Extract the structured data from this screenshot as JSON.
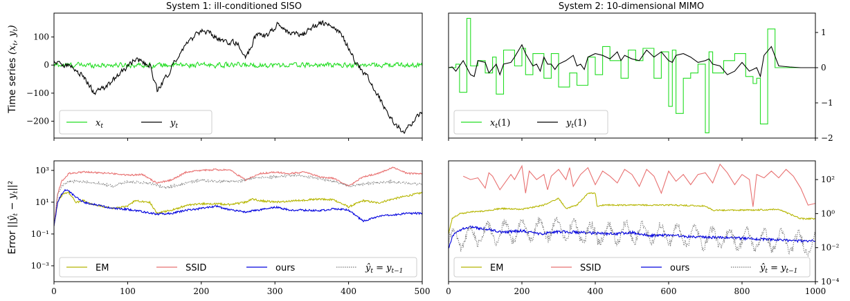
{
  "chart_data": [
    {
      "id": "p1",
      "type": "line",
      "title": "System 1: ill-conditioned SISO",
      "ylabel": "Time series (x_t, y_t)",
      "xlim": [
        0,
        500
      ],
      "ylim": [
        -260,
        185
      ],
      "xticks": [],
      "yticks": [
        {
          "v": 100,
          "label": "100"
        },
        {
          "v": 0,
          "label": "0"
        },
        {
          "v": -100,
          "label": "−100"
        },
        {
          "v": -200,
          "label": "−200"
        }
      ],
      "ytick_side": "left",
      "legend": "lower-left",
      "series": [
        {
          "name": "x_t",
          "color": "#22dd22",
          "style": "noise",
          "noise_amp": 8,
          "x": [
            0,
            500
          ],
          "y": [
            0,
            0
          ]
        },
        {
          "name": "y_t",
          "color": "#000000",
          "style": "noise",
          "noise_amp": 9,
          "x": [
            0,
            20,
            40,
            55,
            70,
            90,
            110,
            130,
            140,
            155,
            170,
            185,
            200,
            215,
            230,
            250,
            260,
            275,
            290,
            305,
            320,
            340,
            360,
            375,
            390,
            410,
            425,
            440,
            460,
            475,
            485,
            500
          ],
          "y": [
            10,
            0,
            -40,
            -100,
            -80,
            -30,
            20,
            0,
            -90,
            -30,
            40,
            90,
            120,
            110,
            80,
            80,
            20,
            110,
            105,
            150,
            110,
            110,
            150,
            140,
            110,
            10,
            -40,
            -110,
            -200,
            -240,
            -210,
            -160
          ]
        }
      ]
    },
    {
      "id": "p2",
      "type": "line",
      "title": "System 2: 10-dimensional MIMO",
      "ylabel": "",
      "xlim": [
        0,
        1000
      ],
      "ylim": [
        -2,
        1.55
      ],
      "xticks": [],
      "yticks": [
        {
          "v": 1,
          "label": "1"
        },
        {
          "v": 0,
          "label": "0"
        },
        {
          "v": -1,
          "label": "−1"
        },
        {
          "v": -2,
          "label": "−2"
        }
      ],
      "ytick_side": "right",
      "legend": "lower-left",
      "series": [
        {
          "name": "x_t(1)",
          "color": "#22dd22",
          "style": "step",
          "x": [
            0,
            20,
            30,
            50,
            60,
            80,
            100,
            120,
            130,
            150,
            180,
            200,
            210,
            230,
            260,
            280,
            300,
            330,
            350,
            380,
            400,
            420,
            440,
            470,
            490,
            510,
            530,
            560,
            580,
            600,
            610,
            620,
            640,
            660,
            680,
            700,
            710,
            720,
            750,
            780,
            810,
            830,
            840,
            850,
            870,
            890,
            1000
          ],
          "y": [
            0,
            0.1,
            -0.7,
            1.4,
            0.05,
            0.2,
            -0.15,
            0.3,
            -0.75,
            0.5,
            0.05,
            0.55,
            -0.2,
            0.4,
            -0.3,
            0.4,
            -0.55,
            -0.15,
            -0.5,
            0.3,
            -0.2,
            0.6,
            0.2,
            -0.3,
            0.5,
            0.2,
            0.55,
            -0.3,
            0.45,
            -1.1,
            0.5,
            -1.3,
            -0.3,
            -0.15,
            0.1,
            -1.85,
            0.45,
            -0.15,
            0.2,
            0.4,
            -0.25,
            -0.45,
            -0.3,
            -1.6,
            1.1,
            0,
            0
          ]
        },
        {
          "name": "y_t(1)",
          "color": "#000000",
          "style": "line",
          "x": [
            0,
            10,
            20,
            40,
            60,
            70,
            80,
            100,
            110,
            130,
            140,
            150,
            170,
            180,
            200,
            210,
            230,
            240,
            250,
            260,
            270,
            280,
            290,
            300,
            320,
            340,
            350,
            360,
            370,
            380,
            400,
            420,
            440,
            460,
            470,
            480,
            500,
            520,
            540,
            560,
            580,
            600,
            610,
            620,
            640,
            660,
            680,
            700,
            710,
            720,
            740,
            760,
            780,
            800,
            820,
            840,
            850,
            860,
            880,
            900,
            930,
            960,
            1000
          ],
          "y": [
            0,
            0.02,
            -0.1,
            0.2,
            -0.2,
            -0.25,
            0.2,
            0.15,
            -0.15,
            0.1,
            -0.2,
            0.1,
            0.15,
            0.3,
            0.65,
            0.4,
            0.05,
            0.1,
            -0.1,
            0.3,
            0.1,
            0.1,
            -0.05,
            0.1,
            0.2,
            0.35,
            0.05,
            0.1,
            -0.05,
            0.3,
            0.4,
            0.35,
            0.25,
            0.45,
            0.2,
            0.35,
            0.25,
            0.2,
            0.5,
            0.3,
            0.45,
            0.2,
            0.15,
            0.35,
            0.4,
            0.3,
            0.15,
            0.2,
            0.25,
            0.1,
            0.05,
            -0.2,
            -0.1,
            0.15,
            -0.1,
            0.0,
            -0.25,
            0.35,
            0.6,
            0.05,
            0.02,
            0.0,
            0.0
          ]
        }
      ]
    },
    {
      "id": "p3",
      "type": "line",
      "title": "",
      "ylabel": "Error ||ŷ_t − y_t||²",
      "log": true,
      "xlim": [
        0,
        500
      ],
      "ylim": [
        -4,
        3.6
      ],
      "xticks": [
        {
          "v": 0,
          "label": "0"
        },
        {
          "v": 100,
          "label": "100"
        },
        {
          "v": 200,
          "label": "200"
        },
        {
          "v": 300,
          "label": "300"
        },
        {
          "v": 400,
          "label": "400"
        },
        {
          "v": 500,
          "label": "500"
        }
      ],
      "yticks": [
        {
          "v": 3,
          "label": "10³"
        },
        {
          "v": 1,
          "label": "10¹"
        },
        {
          "v": -1,
          "label": "10⁻¹"
        },
        {
          "v": -3,
          "label": "10⁻³"
        }
      ],
      "ytick_side": "left",
      "legend": "bottom",
      "series": [
        {
          "name": "EM",
          "color": "#b5b500",
          "style": "line",
          "noise_amp": 0.06,
          "x": [
            0,
            5,
            10,
            15,
            20,
            30,
            40,
            50,
            80,
            100,
            110,
            130,
            140,
            150,
            160,
            180,
            200,
            220,
            240,
            260,
            270,
            280,
            300,
            330,
            360,
            380,
            400,
            420,
            440,
            460,
            480,
            500
          ],
          "y": [
            -0.5,
            1.0,
            1.4,
            1.6,
            1.6,
            1.0,
            1.1,
            0.9,
            0.6,
            0.75,
            1.1,
            1.0,
            0.3,
            0.4,
            0.5,
            0.8,
            0.9,
            0.9,
            0.85,
            1.0,
            1.2,
            1.1,
            1.0,
            1.1,
            1.2,
            1.15,
            0.7,
            1.1,
            0.95,
            1.2,
            1.4,
            1.6
          ]
        },
        {
          "name": "SSID",
          "color": "#e87070",
          "style": "line",
          "noise_amp": 0.05,
          "x": [
            0,
            5,
            10,
            20,
            40,
            60,
            80,
            100,
            120,
            140,
            160,
            180,
            200,
            220,
            240,
            260,
            280,
            300,
            320,
            340,
            360,
            380,
            400,
            420,
            440,
            460,
            470,
            480,
            500
          ],
          "y": [
            -0.5,
            1.5,
            2.3,
            2.8,
            2.9,
            2.85,
            2.8,
            2.7,
            2.75,
            2.2,
            2.4,
            2.9,
            3.0,
            3.05,
            3.0,
            2.4,
            2.8,
            2.9,
            2.8,
            2.9,
            2.6,
            2.5,
            2.0,
            2.6,
            2.8,
            3.2,
            3.0,
            2.8,
            2.8
          ]
        },
        {
          "name": "ours",
          "color": "#0000dd",
          "style": "line",
          "noise_amp": 0.06,
          "x": [
            0,
            5,
            10,
            15,
            20,
            30,
            40,
            60,
            80,
            100,
            120,
            140,
            160,
            180,
            200,
            220,
            240,
            260,
            280,
            300,
            320,
            340,
            360,
            380,
            400,
            420,
            440,
            460,
            480,
            500
          ],
          "y": [
            -0.5,
            1.0,
            1.5,
            1.75,
            1.7,
            1.3,
            1.0,
            0.8,
            0.6,
            0.55,
            0.4,
            0.25,
            0.3,
            0.5,
            0.6,
            0.75,
            0.5,
            0.4,
            0.5,
            0.7,
            0.5,
            0.5,
            0.45,
            0.6,
            0.5,
            -0.2,
            0.1,
            0.2,
            0.3,
            0.3
          ]
        },
        {
          "name": "ŷ_t = y_{t−1}",
          "color": "#777777",
          "style": "dotted",
          "noise_amp": 0.08,
          "x": [
            0,
            5,
            10,
            20,
            40,
            60,
            80,
            100,
            130,
            150,
            180,
            200,
            220,
            250,
            270,
            300,
            330,
            360,
            380,
            400,
            430,
            460,
            480,
            500
          ],
          "y": [
            -0.5,
            1.5,
            2.0,
            2.3,
            2.3,
            2.2,
            2.0,
            2.3,
            2.2,
            1.9,
            2.2,
            2.4,
            2.3,
            2.3,
            2.5,
            2.6,
            2.7,
            2.5,
            2.3,
            2.0,
            2.2,
            2.3,
            2.2,
            2.1
          ]
        }
      ]
    },
    {
      "id": "p4",
      "type": "line",
      "title": "",
      "ylabel": "",
      "log": true,
      "xlim": [
        0,
        1000
      ],
      "ylim": [
        -4,
        3.1
      ],
      "xticks": [
        {
          "v": 0,
          "label": "0"
        },
        {
          "v": 200,
          "label": "200"
        },
        {
          "v": 400,
          "label": "400"
        },
        {
          "v": 600,
          "label": "600"
        },
        {
          "v": 800,
          "label": "800"
        },
        {
          "v": 1000,
          "label": "1000"
        }
      ],
      "yticks": [
        {
          "v": 2,
          "label": "10²"
        },
        {
          "v": 0,
          "label": "10⁰"
        },
        {
          "v": -2,
          "label": "10⁻²"
        },
        {
          "v": -4,
          "label": "10⁻⁴"
        }
      ],
      "ytick_side": "right",
      "legend": "bottom",
      "series": [
        {
          "name": "EM",
          "color": "#b5b500",
          "style": "line",
          "noise_amp": 0.04,
          "x": [
            0,
            10,
            30,
            60,
            100,
            140,
            200,
            260,
            300,
            320,
            350,
            380,
            400,
            405,
            420,
            500,
            600,
            700,
            720,
            800,
            900,
            960,
            1000
          ],
          "y": [
            -1.2,
            -0.3,
            0.0,
            0.1,
            0.15,
            0.3,
            0.25,
            0.5,
            0.9,
            0.3,
            0.5,
            1.2,
            1.2,
            0.4,
            0.5,
            0.5,
            0.5,
            0.45,
            0.2,
            0.2,
            0.25,
            -0.3,
            -0.3
          ]
        },
        {
          "name": "SSID",
          "color": "#e87070",
          "style": "line",
          "noise_amp": 0.0,
          "x": [
            40,
            60,
            80,
            100,
            110,
            120,
            140,
            160,
            170,
            180,
            200,
            210,
            220,
            240,
            260,
            270,
            280,
            300,
            320,
            330,
            340,
            360,
            380,
            400,
            420,
            440,
            460,
            480,
            500,
            520,
            540,
            560,
            580,
            600,
            620,
            640,
            660,
            680,
            700,
            720,
            740,
            760,
            780,
            800,
            820,
            830,
            840,
            860,
            880,
            900,
            920,
            940,
            960,
            980,
            1000
          ],
          "y": [
            2.2,
            2.0,
            2.1,
            1.5,
            2.4,
            2.2,
            1.4,
            2.0,
            2.3,
            2.0,
            2.8,
            1.2,
            2.5,
            2.0,
            2.3,
            1.4,
            2.2,
            2.6,
            2.0,
            2.7,
            1.6,
            2.3,
            2.7,
            1.7,
            2.5,
            2.2,
            1.8,
            2.6,
            2.3,
            1.6,
            2.6,
            2.2,
            1.2,
            2.5,
            1.9,
            2.3,
            1.7,
            2.3,
            2.4,
            1.8,
            2.9,
            2.4,
            1.7,
            2.3,
            2.0,
            0.4,
            2.3,
            2.1,
            2.5,
            2.1,
            2.6,
            2.2,
            1.5,
            0.5,
            0.6
          ]
        },
        {
          "name": "ours",
          "color": "#0000dd",
          "style": "line",
          "noise_amp": 0.08,
          "x": [
            0,
            10,
            20,
            40,
            60,
            100,
            150,
            200,
            250,
            300,
            350,
            400,
            450,
            500,
            550,
            600,
            650,
            700,
            750,
            800,
            850,
            900,
            950,
            1000
          ],
          "y": [
            -2.0,
            -1.4,
            -1.1,
            -0.9,
            -0.8,
            -0.9,
            -1.1,
            -1.0,
            -1.2,
            -1.05,
            -1.1,
            -1.15,
            -1.2,
            -1.1,
            -1.3,
            -1.25,
            -1.35,
            -1.4,
            -1.4,
            -1.45,
            -1.5,
            -1.55,
            -1.6,
            -1.6
          ]
        },
        {
          "name": "ŷ_t = y_{t−1}",
          "color": "#777777",
          "style": "dotted",
          "noise_amp": 0.0,
          "oscillate": true,
          "x": [
            0,
            100,
            200,
            300,
            400,
            500,
            600,
            700,
            800,
            900,
            1000
          ],
          "y": [
            -1.6,
            -1.2,
            -1.0,
            -0.9,
            -1.2,
            -1.1,
            -1.2,
            -1.4,
            -1.5,
            -1.6,
            -1.8
          ]
        }
      ]
    }
  ]
}
